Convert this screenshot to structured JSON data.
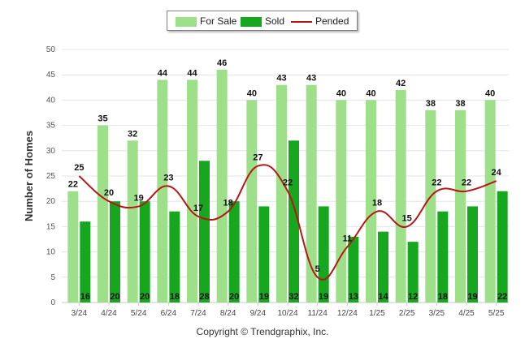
{
  "legend": {
    "for_sale": "For Sale",
    "sold": "Sold",
    "pended": "Pended"
  },
  "colors": {
    "for_sale": "#9ee08a",
    "sold": "#16a71f",
    "pended": "#b81515",
    "grid": "#e4e4e4"
  },
  "footer": {
    "copyright": "Copyright © Trendgraphix, Inc."
  },
  "chart_data": {
    "type": "bar",
    "title": "",
    "xlabel": "",
    "ylabel": "Number of Homes",
    "ylim": [
      0,
      50
    ],
    "yticks": [
      0,
      5,
      10,
      15,
      20,
      25,
      30,
      35,
      40,
      45,
      50
    ],
    "grid": true,
    "legend_position": "top-center",
    "categories": [
      "3/24",
      "4/24",
      "5/24",
      "6/24",
      "7/24",
      "8/24",
      "9/24",
      "10/24",
      "11/24",
      "12/24",
      "1/25",
      "2/25",
      "3/25",
      "4/25",
      "5/25"
    ],
    "series": [
      {
        "name": "For Sale",
        "type": "bar",
        "values": [
          22,
          35,
          32,
          44,
          44,
          46,
          40,
          43,
          43,
          40,
          40,
          42,
          38,
          38,
          40
        ]
      },
      {
        "name": "Sold",
        "type": "bar",
        "values": [
          16,
          20,
          20,
          18,
          28,
          20,
          19,
          32,
          19,
          13,
          14,
          12,
          18,
          19,
          22
        ]
      },
      {
        "name": "Pended",
        "type": "line",
        "values": [
          25,
          20,
          19,
          23,
          17,
          18,
          27,
          22,
          5,
          11,
          18,
          15,
          22,
          22,
          24
        ]
      }
    ]
  }
}
